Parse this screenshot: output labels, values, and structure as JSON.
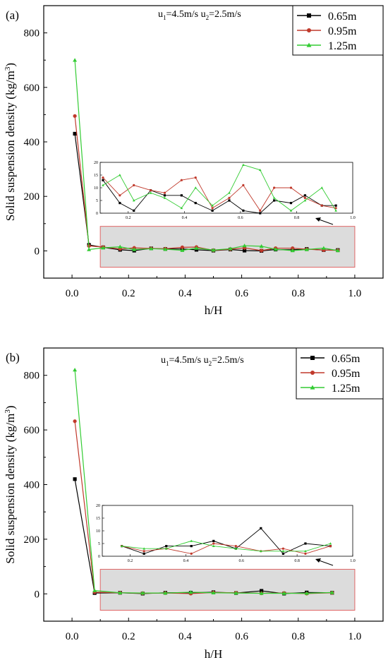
{
  "chart_data": [
    {
      "panel": "(a)",
      "type": "line",
      "annotation": {
        "u1_label": "u",
        "u1_sub": "1",
        "u1_val": "=4.5m/s u",
        "u2_sub": "2",
        "u2_val": "=2.5m/s"
      },
      "xlabel": "h/H",
      "ylabel": "Solid suspension density (kg/m³)",
      "ylabel_main": "Solid suspension density (kg/m",
      "ylabel_sup": "3",
      "ylabel_close": ")",
      "xlim": [
        -0.1,
        1.1
      ],
      "ylim": [
        -100,
        900
      ],
      "xticks": [
        "0.0",
        "0.2",
        "0.4",
        "0.6",
        "0.8",
        "1.0"
      ],
      "yticks": [
        "0",
        "200",
        "400",
        "600",
        "800"
      ],
      "legend_position": "top-right",
      "x": [
        0.01,
        0.06,
        0.11,
        0.17,
        0.22,
        0.28,
        0.33,
        0.39,
        0.44,
        0.5,
        0.56,
        0.61,
        0.67,
        0.72,
        0.78,
        0.83,
        0.89,
        0.94
      ],
      "series": [
        {
          "name": "0.65m",
          "color": "#000000",
          "marker": "square",
          "values": [
            430,
            22,
            13,
            4,
            1,
            9,
            7,
            7,
            4,
            1,
            5,
            1,
            0,
            5,
            4,
            7,
            3,
            3
          ]
        },
        {
          "name": "0.95m",
          "color": "#c0392b",
          "marker": "circle",
          "values": [
            495,
            18,
            14,
            7,
            11,
            9,
            8,
            13,
            14,
            2,
            6,
            11,
            1,
            10,
            10,
            6,
            3,
            2
          ]
        },
        {
          "name": "1.25m",
          "color": "#33cc33",
          "marker": "triangle",
          "values": [
            700,
            5,
            11,
            15,
            5,
            8,
            6,
            2,
            10,
            3,
            8,
            19,
            17,
            6,
            1,
            5,
            10,
            1
          ]
        }
      ],
      "inset": {
        "xlim": [
          0.1,
          1.0
        ],
        "ylim": [
          0,
          20
        ],
        "xticks": [
          "0.2",
          "0.4",
          "0.6",
          "0.8",
          "1.0"
        ],
        "yticks": [
          "0",
          "5",
          "10",
          "15",
          "20"
        ]
      }
    },
    {
      "panel": "(b)",
      "type": "line",
      "annotation": {
        "u1_label": "u",
        "u1_sub": "1",
        "u1_val": "=4.5m/s  u",
        "u2_sub": "2",
        "u2_val": "=2.5m/s"
      },
      "xlabel": "h/H",
      "ylabel": "Solid suspension density (kg/m³)",
      "ylabel_main": "Solid suspension density (kg/m",
      "ylabel_sup": "3",
      "ylabel_close": ")",
      "xlim": [
        -0.1,
        1.1
      ],
      "ylim": [
        -100,
        900
      ],
      "xticks": [
        "0.0",
        "0.2",
        "0.4",
        "0.6",
        "0.8",
        "1.0"
      ],
      "yticks": [
        "0",
        "200",
        "400",
        "600",
        "800"
      ],
      "legend_position": "top-right",
      "x": [
        0.01,
        0.08,
        0.17,
        0.25,
        0.33,
        0.42,
        0.5,
        0.58,
        0.67,
        0.75,
        0.83,
        0.92
      ],
      "series": [
        {
          "name": "0.65m",
          "color": "#000000",
          "marker": "square",
          "values": [
            420,
            3,
            4,
            1,
            4,
            4,
            6,
            3,
            11,
            1,
            5,
            4
          ]
        },
        {
          "name": "0.95m",
          "color": "#c0392b",
          "marker": "circle",
          "values": [
            632,
            6,
            4,
            2,
            3,
            1,
            5,
            4,
            2,
            3,
            1,
            4
          ]
        },
        {
          "name": "1.25m",
          "color": "#33cc33",
          "marker": "triangle",
          "values": [
            820,
            12,
            4,
            3,
            3,
            6,
            4,
            3,
            2,
            2,
            2,
            5
          ]
        }
      ],
      "inset": {
        "xlim": [
          0.1,
          1.0
        ],
        "ylim": [
          0,
          20
        ],
        "xticks": [
          "0.2",
          "0.4",
          "0.6",
          "0.8",
          "1.0"
        ],
        "yticks": [
          "0",
          "5",
          "10",
          "15",
          "20"
        ]
      }
    }
  ]
}
